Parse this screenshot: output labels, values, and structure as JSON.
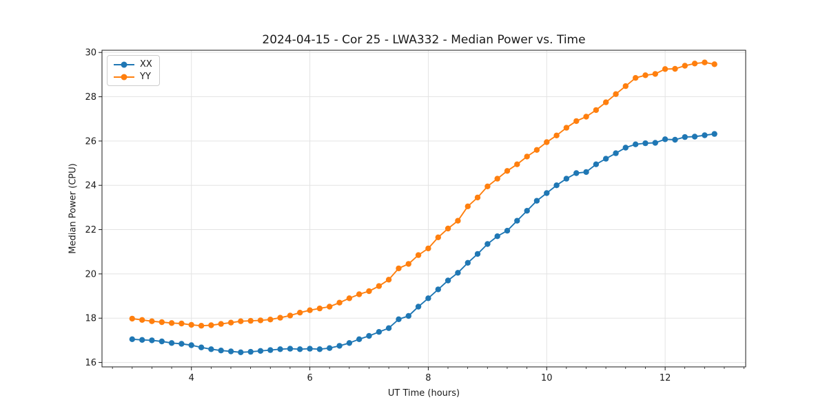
{
  "chart_data": {
    "type": "line",
    "title": "2024-04-15 - Cor 25 - LWA332 - Median Power vs. Time",
    "xlabel": "UT Time (hours)",
    "ylabel": "Median Power (CPU)",
    "xlim": [
      2.49,
      13.36
    ],
    "ylim": [
      15.8,
      30.1
    ],
    "xticks": [
      4,
      6,
      8,
      10,
      12
    ],
    "yticks": [
      16,
      18,
      20,
      22,
      24,
      26,
      28,
      30
    ],
    "x_minor_step": 0.3333,
    "grid": true,
    "grid_color": "#e3e3e3",
    "axis_color": "#1a1a1a",
    "legend_position": "upper-left",
    "x": [
      3.0,
      3.167,
      3.333,
      3.5,
      3.667,
      3.833,
      4.0,
      4.167,
      4.333,
      4.5,
      4.667,
      4.833,
      5.0,
      5.167,
      5.333,
      5.5,
      5.667,
      5.833,
      6.0,
      6.167,
      6.333,
      6.5,
      6.667,
      6.833,
      7.0,
      7.167,
      7.333,
      7.5,
      7.667,
      7.833,
      8.0,
      8.167,
      8.333,
      8.5,
      8.667,
      8.833,
      9.0,
      9.167,
      9.333,
      9.5,
      9.667,
      9.833,
      10.0,
      10.167,
      10.333,
      10.5,
      10.667,
      10.833,
      11.0,
      11.167,
      11.333,
      11.5,
      11.667,
      11.833,
      12.0,
      12.167,
      12.333,
      12.5,
      12.667,
      12.833
    ],
    "series": [
      {
        "name": "XX",
        "color": "#1f77b4",
        "values": [
          17.05,
          17.02,
          17.0,
          16.95,
          16.88,
          16.84,
          16.78,
          16.68,
          16.6,
          16.54,
          16.5,
          16.46,
          16.48,
          16.52,
          16.56,
          16.6,
          16.62,
          16.6,
          16.62,
          16.6,
          16.65,
          16.75,
          16.88,
          17.05,
          17.2,
          17.38,
          17.55,
          17.95,
          18.1,
          18.52,
          18.9,
          19.3,
          19.7,
          20.05,
          20.5,
          20.9,
          21.35,
          21.7,
          21.95,
          22.4,
          22.85,
          23.3,
          23.65,
          24.0,
          24.3,
          24.55,
          24.6,
          24.95,
          25.2,
          25.45,
          25.7,
          25.85,
          25.9,
          25.92,
          26.08,
          26.06,
          26.18,
          26.2,
          26.26,
          26.32
        ]
      },
      {
        "name": "YY",
        "color": "#ff7f0e",
        "values": [
          17.98,
          17.92,
          17.86,
          17.82,
          17.78,
          17.76,
          17.7,
          17.66,
          17.68,
          17.74,
          17.8,
          17.86,
          17.88,
          17.9,
          17.94,
          18.02,
          18.12,
          18.25,
          18.36,
          18.44,
          18.52,
          18.7,
          18.9,
          19.08,
          19.22,
          19.45,
          19.74,
          20.25,
          20.45,
          20.85,
          21.15,
          21.65,
          22.05,
          22.4,
          23.05,
          23.45,
          23.95,
          24.3,
          24.65,
          24.95,
          25.3,
          25.6,
          25.95,
          26.25,
          26.6,
          26.9,
          27.1,
          27.4,
          27.75,
          28.12,
          28.48,
          28.85,
          28.97,
          29.03,
          29.25,
          29.26,
          29.4,
          29.5,
          29.55,
          29.47
        ]
      }
    ]
  }
}
